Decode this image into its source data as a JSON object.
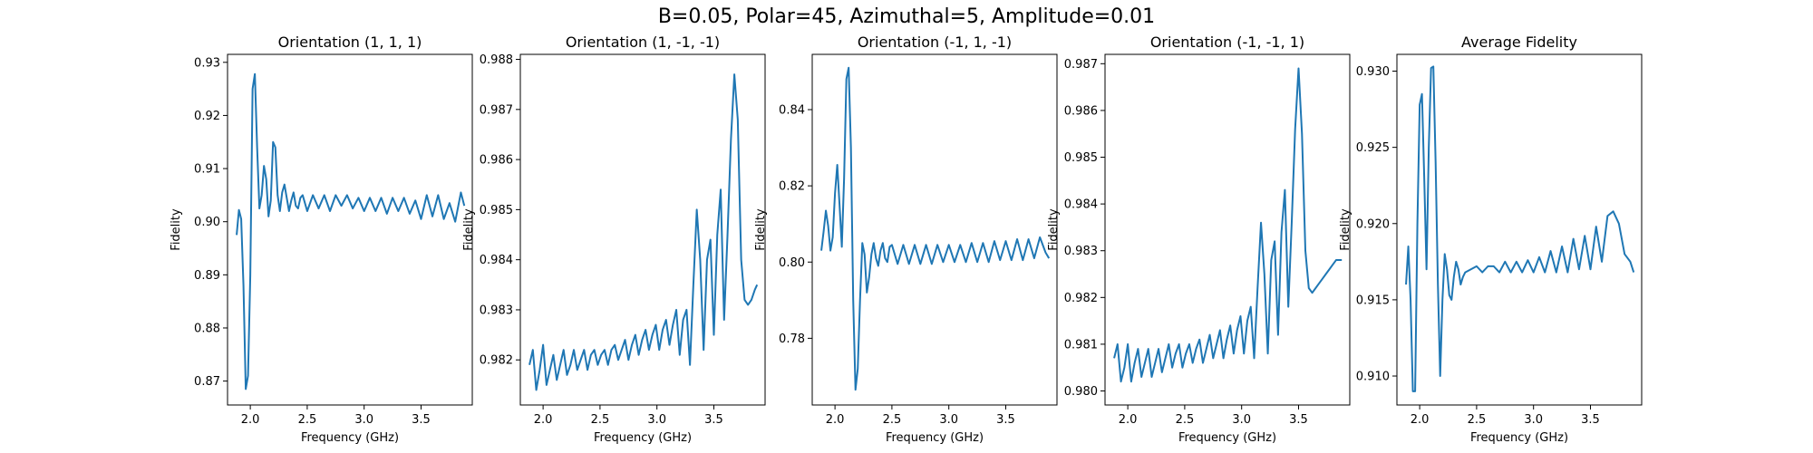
{
  "suptitle": "B=0.05, Polar=45, Azimuthal=5, Amplitude=0.01",
  "colors": {
    "line": "#1f77b4",
    "axes": "#000000"
  },
  "chart_data": [
    {
      "type": "line",
      "title": "Orientation (1, 1, 1)",
      "xlabel": "Frequency (GHz)",
      "ylabel": "Fidelity",
      "xlim": [
        1.8,
        3.95
      ],
      "ylim": [
        0.8655,
        0.9315
      ],
      "xticks": [
        "2.0",
        "2.5",
        "3.0",
        "3.5"
      ],
      "xtick_values": [
        2.0,
        2.5,
        3.0,
        3.5
      ],
      "yticks": [
        "0.87",
        "0.88",
        "0.89",
        "0.90",
        "0.91",
        "0.92",
        "0.93"
      ],
      "ytick_values": [
        0.87,
        0.88,
        0.89,
        0.9,
        0.91,
        0.92,
        0.93
      ],
      "series": [
        {
          "x": [
            1.88,
            1.9,
            1.92,
            1.94,
            1.96,
            1.98,
            2.0,
            2.02,
            2.04,
            2.06,
            2.08,
            2.1,
            2.12,
            2.14,
            2.16,
            2.18,
            2.2,
            2.22,
            2.24,
            2.26,
            2.28,
            2.3,
            2.32,
            2.34,
            2.36,
            2.38,
            2.4,
            2.42,
            2.44,
            2.46,
            2.48,
            2.5,
            2.55,
            2.6,
            2.65,
            2.7,
            2.75,
            2.8,
            2.85,
            2.9,
            2.95,
            3.0,
            3.05,
            3.1,
            3.15,
            3.2,
            3.25,
            3.3,
            3.35,
            3.4,
            3.45,
            3.5,
            3.55,
            3.6,
            3.65,
            3.7,
            3.75,
            3.8,
            3.85,
            3.88
          ],
          "y": [
            0.8975,
            0.9022,
            0.9005,
            0.888,
            0.8685,
            0.871,
            0.89,
            0.925,
            0.9278,
            0.914,
            0.9025,
            0.905,
            0.9105,
            0.908,
            0.901,
            0.904,
            0.915,
            0.914,
            0.905,
            0.902,
            0.9055,
            0.907,
            0.9045,
            0.902,
            0.904,
            0.9055,
            0.903,
            0.9025,
            0.9045,
            0.905,
            0.9035,
            0.902,
            0.905,
            0.9025,
            0.905,
            0.902,
            0.905,
            0.903,
            0.905,
            0.9025,
            0.9045,
            0.902,
            0.9045,
            0.902,
            0.9045,
            0.9015,
            0.9045,
            0.902,
            0.9045,
            0.9015,
            0.904,
            0.9005,
            0.905,
            0.901,
            0.905,
            0.9005,
            0.9035,
            0.9,
            0.9055,
            0.903
          ]
        }
      ]
    },
    {
      "type": "line",
      "title": "Orientation (1, -1, -1)",
      "xlabel": "Frequency (GHz)",
      "ylabel": "Fidelity",
      "xlim": [
        1.8,
        3.95
      ],
      "ylim": [
        0.9811,
        0.9881
      ],
      "xticks": [
        "2.0",
        "2.5",
        "3.0",
        "3.5"
      ],
      "xtick_values": [
        2.0,
        2.5,
        3.0,
        3.5
      ],
      "yticks": [
        "0.982",
        "0.983",
        "0.984",
        "0.985",
        "0.986",
        "0.987",
        "0.988"
      ],
      "ytick_values": [
        0.982,
        0.983,
        0.984,
        0.985,
        0.986,
        0.987,
        0.988
      ],
      "series": [
        {
          "x": [
            1.88,
            1.91,
            1.94,
            1.97,
            2.0,
            2.03,
            2.06,
            2.09,
            2.12,
            2.15,
            2.18,
            2.21,
            2.24,
            2.27,
            2.3,
            2.33,
            2.36,
            2.39,
            2.42,
            2.45,
            2.48,
            2.51,
            2.54,
            2.57,
            2.6,
            2.63,
            2.66,
            2.69,
            2.72,
            2.75,
            2.78,
            2.81,
            2.84,
            2.87,
            2.9,
            2.93,
            2.96,
            2.99,
            3.02,
            3.05,
            3.08,
            3.11,
            3.14,
            3.17,
            3.2,
            3.23,
            3.26,
            3.29,
            3.32,
            3.35,
            3.38,
            3.41,
            3.44,
            3.47,
            3.5,
            3.53,
            3.56,
            3.59,
            3.62,
            3.65,
            3.68,
            3.71,
            3.74,
            3.77,
            3.8,
            3.83,
            3.86,
            3.88
          ],
          "y": [
            0.9819,
            0.9822,
            0.9814,
            0.9818,
            0.9823,
            0.9815,
            0.9818,
            0.9821,
            0.9816,
            0.9819,
            0.9822,
            0.9817,
            0.9819,
            0.9822,
            0.9818,
            0.982,
            0.9822,
            0.9818,
            0.9821,
            0.9822,
            0.9819,
            0.9821,
            0.9822,
            0.9819,
            0.9822,
            0.9823,
            0.982,
            0.9822,
            0.9824,
            0.982,
            0.9823,
            0.9825,
            0.9821,
            0.9824,
            0.9826,
            0.9822,
            0.9825,
            0.9827,
            0.9822,
            0.9826,
            0.9828,
            0.9823,
            0.9827,
            0.983,
            0.9821,
            0.9828,
            0.983,
            0.9819,
            0.9835,
            0.985,
            0.984,
            0.9822,
            0.984,
            0.9844,
            0.9825,
            0.9845,
            0.9854,
            0.9828,
            0.9845,
            0.9864,
            0.9877,
            0.9868,
            0.984,
            0.9832,
            0.9831,
            0.9832,
            0.9834,
            0.9835
          ]
        }
      ]
    },
    {
      "type": "line",
      "title": "Orientation (-1, 1, -1)",
      "xlabel": "Frequency (GHz)",
      "ylabel": "Fidelity",
      "xlim": [
        1.8,
        3.95
      ],
      "ylim": [
        0.7625,
        0.8545
      ],
      "xticks": [
        "2.0",
        "2.5",
        "3.0",
        "3.5"
      ],
      "xtick_values": [
        2.0,
        2.5,
        3.0,
        3.5
      ],
      "yticks": [
        "0.78",
        "0.80",
        "0.82",
        "0.84"
      ],
      "ytick_values": [
        0.78,
        0.8,
        0.82,
        0.84
      ],
      "series": [
        {
          "x": [
            1.88,
            1.9,
            1.92,
            1.94,
            1.96,
            1.98,
            2.0,
            2.02,
            2.04,
            2.06,
            2.08,
            2.1,
            2.12,
            2.14,
            2.16,
            2.18,
            2.2,
            2.22,
            2.24,
            2.26,
            2.28,
            2.3,
            2.32,
            2.34,
            2.36,
            2.38,
            2.4,
            2.42,
            2.44,
            2.46,
            2.48,
            2.5,
            2.55,
            2.6,
            2.65,
            2.7,
            2.75,
            2.8,
            2.85,
            2.9,
            2.95,
            3.0,
            3.05,
            3.1,
            3.15,
            3.2,
            3.25,
            3.3,
            3.35,
            3.4,
            3.45,
            3.5,
            3.55,
            3.6,
            3.65,
            3.7,
            3.75,
            3.8,
            3.85,
            3.88
          ],
          "y": [
            0.803,
            0.808,
            0.8135,
            0.8095,
            0.803,
            0.8065,
            0.818,
            0.8255,
            0.815,
            0.804,
            0.822,
            0.848,
            0.851,
            0.83,
            0.79,
            0.7665,
            0.772,
            0.79,
            0.805,
            0.802,
            0.792,
            0.796,
            0.802,
            0.805,
            0.801,
            0.799,
            0.803,
            0.805,
            0.801,
            0.8,
            0.804,
            0.8045,
            0.7995,
            0.8045,
            0.7995,
            0.8045,
            0.7995,
            0.8045,
            0.7995,
            0.8045,
            0.8,
            0.8045,
            0.8,
            0.8045,
            0.8,
            0.805,
            0.8,
            0.805,
            0.8,
            0.8055,
            0.8005,
            0.8055,
            0.8005,
            0.806,
            0.8005,
            0.806,
            0.801,
            0.8065,
            0.8025,
            0.801
          ]
        }
      ]
    },
    {
      "type": "line",
      "title": "Orientation (-1, -1, 1)",
      "xlabel": "Frequency (GHz)",
      "ylabel": "Fidelity",
      "xlim": [
        1.8,
        3.95
      ],
      "ylim": [
        0.9797,
        0.9872
      ],
      "xticks": [
        "2.0",
        "2.5",
        "3.0",
        "3.5"
      ],
      "xtick_values": [
        2.0,
        2.5,
        3.0,
        3.5
      ],
      "yticks": [
        "0.980",
        "0.981",
        "0.982",
        "0.983",
        "0.984",
        "0.985",
        "0.986",
        "0.987"
      ],
      "ytick_values": [
        0.98,
        0.981,
        0.982,
        0.983,
        0.984,
        0.985,
        0.986,
        0.987
      ],
      "series": [
        {
          "x": [
            1.88,
            1.91,
            1.94,
            1.97,
            2.0,
            2.03,
            2.06,
            2.09,
            2.12,
            2.15,
            2.18,
            2.21,
            2.24,
            2.27,
            2.3,
            2.33,
            2.36,
            2.39,
            2.42,
            2.45,
            2.48,
            2.51,
            2.54,
            2.57,
            2.6,
            2.63,
            2.66,
            2.69,
            2.72,
            2.75,
            2.78,
            2.81,
            2.84,
            2.87,
            2.9,
            2.93,
            2.96,
            2.99,
            3.02,
            3.05,
            3.08,
            3.11,
            3.14,
            3.17,
            3.2,
            3.23,
            3.26,
            3.29,
            3.32,
            3.35,
            3.38,
            3.41,
            3.44,
            3.47,
            3.5,
            3.53,
            3.56,
            3.59,
            3.62,
            3.65,
            3.68,
            3.71,
            3.74,
            3.77,
            3.8,
            3.83,
            3.86,
            3.88
          ],
          "y": [
            0.9807,
            0.981,
            0.9802,
            0.9805,
            0.981,
            0.9802,
            0.9806,
            0.9809,
            0.9803,
            0.9806,
            0.9809,
            0.9803,
            0.9806,
            0.9809,
            0.9804,
            0.9807,
            0.981,
            0.9805,
            0.9808,
            0.981,
            0.9805,
            0.9808,
            0.981,
            0.9806,
            0.9809,
            0.9811,
            0.9806,
            0.9809,
            0.9812,
            0.9807,
            0.981,
            0.9813,
            0.9807,
            0.9811,
            0.9814,
            0.9808,
            0.9813,
            0.9816,
            0.9808,
            0.9815,
            0.9818,
            0.9807,
            0.9822,
            0.9836,
            0.9825,
            0.9808,
            0.9828,
            0.9832,
            0.9812,
            0.9834,
            0.9843,
            0.9818,
            0.9836,
            0.9856,
            0.9869,
            0.9855,
            0.983,
            0.9822,
            0.9821,
            0.9822,
            0.9823,
            0.9824,
            0.9825,
            0.9826,
            0.9827,
            0.9828,
            0.9828,
            0.9828
          ]
        }
      ]
    },
    {
      "type": "line",
      "title": "Average Fidelity",
      "xlabel": "Frequency (GHz)",
      "ylabel": "Fidelity",
      "xlim": [
        1.8,
        3.95
      ],
      "ylim": [
        0.9081,
        0.9311
      ],
      "xticks": [
        "2.0",
        "2.5",
        "3.0",
        "3.5"
      ],
      "xtick_values": [
        2.0,
        2.5,
        3.0,
        3.5
      ],
      "yticks": [
        "0.910",
        "0.915",
        "0.920",
        "0.925",
        "0.930"
      ],
      "ytick_values": [
        0.91,
        0.915,
        0.92,
        0.925,
        0.93
      ],
      "series": [
        {
          "x": [
            1.88,
            1.9,
            1.92,
            1.94,
            1.96,
            1.98,
            2.0,
            2.02,
            2.04,
            2.06,
            2.08,
            2.1,
            2.12,
            2.14,
            2.16,
            2.18,
            2.2,
            2.22,
            2.24,
            2.26,
            2.28,
            2.3,
            2.32,
            2.34,
            2.36,
            2.38,
            2.4,
            2.45,
            2.5,
            2.55,
            2.6,
            2.65,
            2.7,
            2.75,
            2.8,
            2.85,
            2.9,
            2.95,
            3.0,
            3.05,
            3.1,
            3.15,
            3.2,
            3.25,
            3.3,
            3.35,
            3.4,
            3.45,
            3.5,
            3.55,
            3.6,
            3.65,
            3.7,
            3.75,
            3.8,
            3.85,
            3.88
          ],
          "y": [
            0.916,
            0.9185,
            0.915,
            0.909,
            0.909,
            0.92,
            0.9278,
            0.9285,
            0.923,
            0.917,
            0.925,
            0.9302,
            0.9303,
            0.924,
            0.916,
            0.91,
            0.915,
            0.918,
            0.917,
            0.9153,
            0.915,
            0.9165,
            0.9175,
            0.917,
            0.916,
            0.9165,
            0.9168,
            0.917,
            0.9172,
            0.9168,
            0.9172,
            0.9172,
            0.9168,
            0.9175,
            0.9168,
            0.9175,
            0.9168,
            0.9176,
            0.9168,
            0.9178,
            0.9168,
            0.9182,
            0.9168,
            0.9185,
            0.9168,
            0.919,
            0.917,
            0.9192,
            0.917,
            0.9198,
            0.9175,
            0.9205,
            0.9208,
            0.92,
            0.918,
            0.9175,
            0.9168
          ]
        }
      ]
    }
  ]
}
